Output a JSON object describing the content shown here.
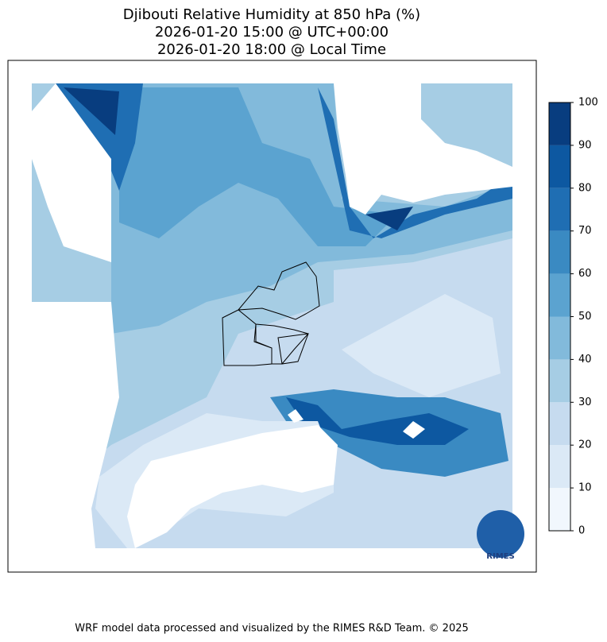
{
  "title": [
    "Djibouti Relative Humidity at 850 hPa (%)",
    "2026-01-20 15:00 @ UTC+00:00",
    "2026-01-20 18:00 @ Local Time"
  ],
  "colorbar": {
    "ticks": [
      0,
      10,
      20,
      30,
      40,
      50,
      60,
      70,
      80,
      90,
      100
    ],
    "colors": [
      "#f1f7fd",
      "#dbe9f6",
      "#c6dbef",
      "#a6cde4",
      "#82badb",
      "#5ba3d0",
      "#3a8ac2",
      "#1f6eb3",
      "#0d58a1",
      "#083d7f"
    ]
  },
  "logo": {
    "text": "RIMES"
  },
  "footer": "WRF model data processed and visualized by the RIMES R&D Team. © 2025"
}
